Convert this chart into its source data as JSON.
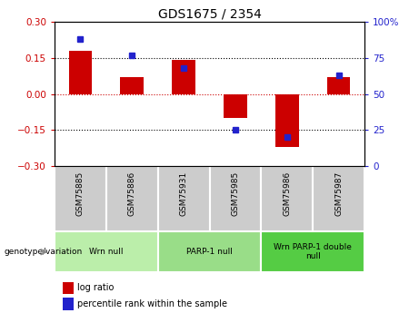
{
  "title": "GDS1675 / 2354",
  "samples": [
    "GSM75885",
    "GSM75886",
    "GSM75931",
    "GSM75985",
    "GSM75986",
    "GSM75987"
  ],
  "log_ratio": [
    0.18,
    0.07,
    0.14,
    -0.1,
    -0.22,
    0.07
  ],
  "percentile_rank": [
    88,
    77,
    68,
    25,
    20,
    63
  ],
  "bar_color": "#cc0000",
  "dot_color": "#2222cc",
  "ylim_left": [
    -0.3,
    0.3
  ],
  "ylim_right": [
    0,
    100
  ],
  "yticks_left": [
    -0.3,
    -0.15,
    0,
    0.15,
    0.3
  ],
  "yticks_right": [
    0,
    25,
    50,
    75,
    100
  ],
  "hlines": [
    -0.15,
    0.0,
    0.15
  ],
  "hline_colors": [
    "black",
    "#cc0000",
    "black"
  ],
  "hline_linestyles": [
    "dotted",
    "dotted",
    "dotted"
  ],
  "groups": [
    {
      "label": "Wrn null",
      "start": 0,
      "end": 2,
      "color": "#bbeeaa"
    },
    {
      "label": "PARP-1 null",
      "start": 2,
      "end": 4,
      "color": "#99dd88"
    },
    {
      "label": "Wrn PARP-1 double\nnull",
      "start": 4,
      "end": 6,
      "color": "#55cc44"
    }
  ],
  "sample_box_color": "#cccccc",
  "genotype_label": "genotype/variation",
  "legend_bar_label": "log ratio",
  "legend_dot_label": "percentile rank within the sample",
  "bar_width": 0.45
}
